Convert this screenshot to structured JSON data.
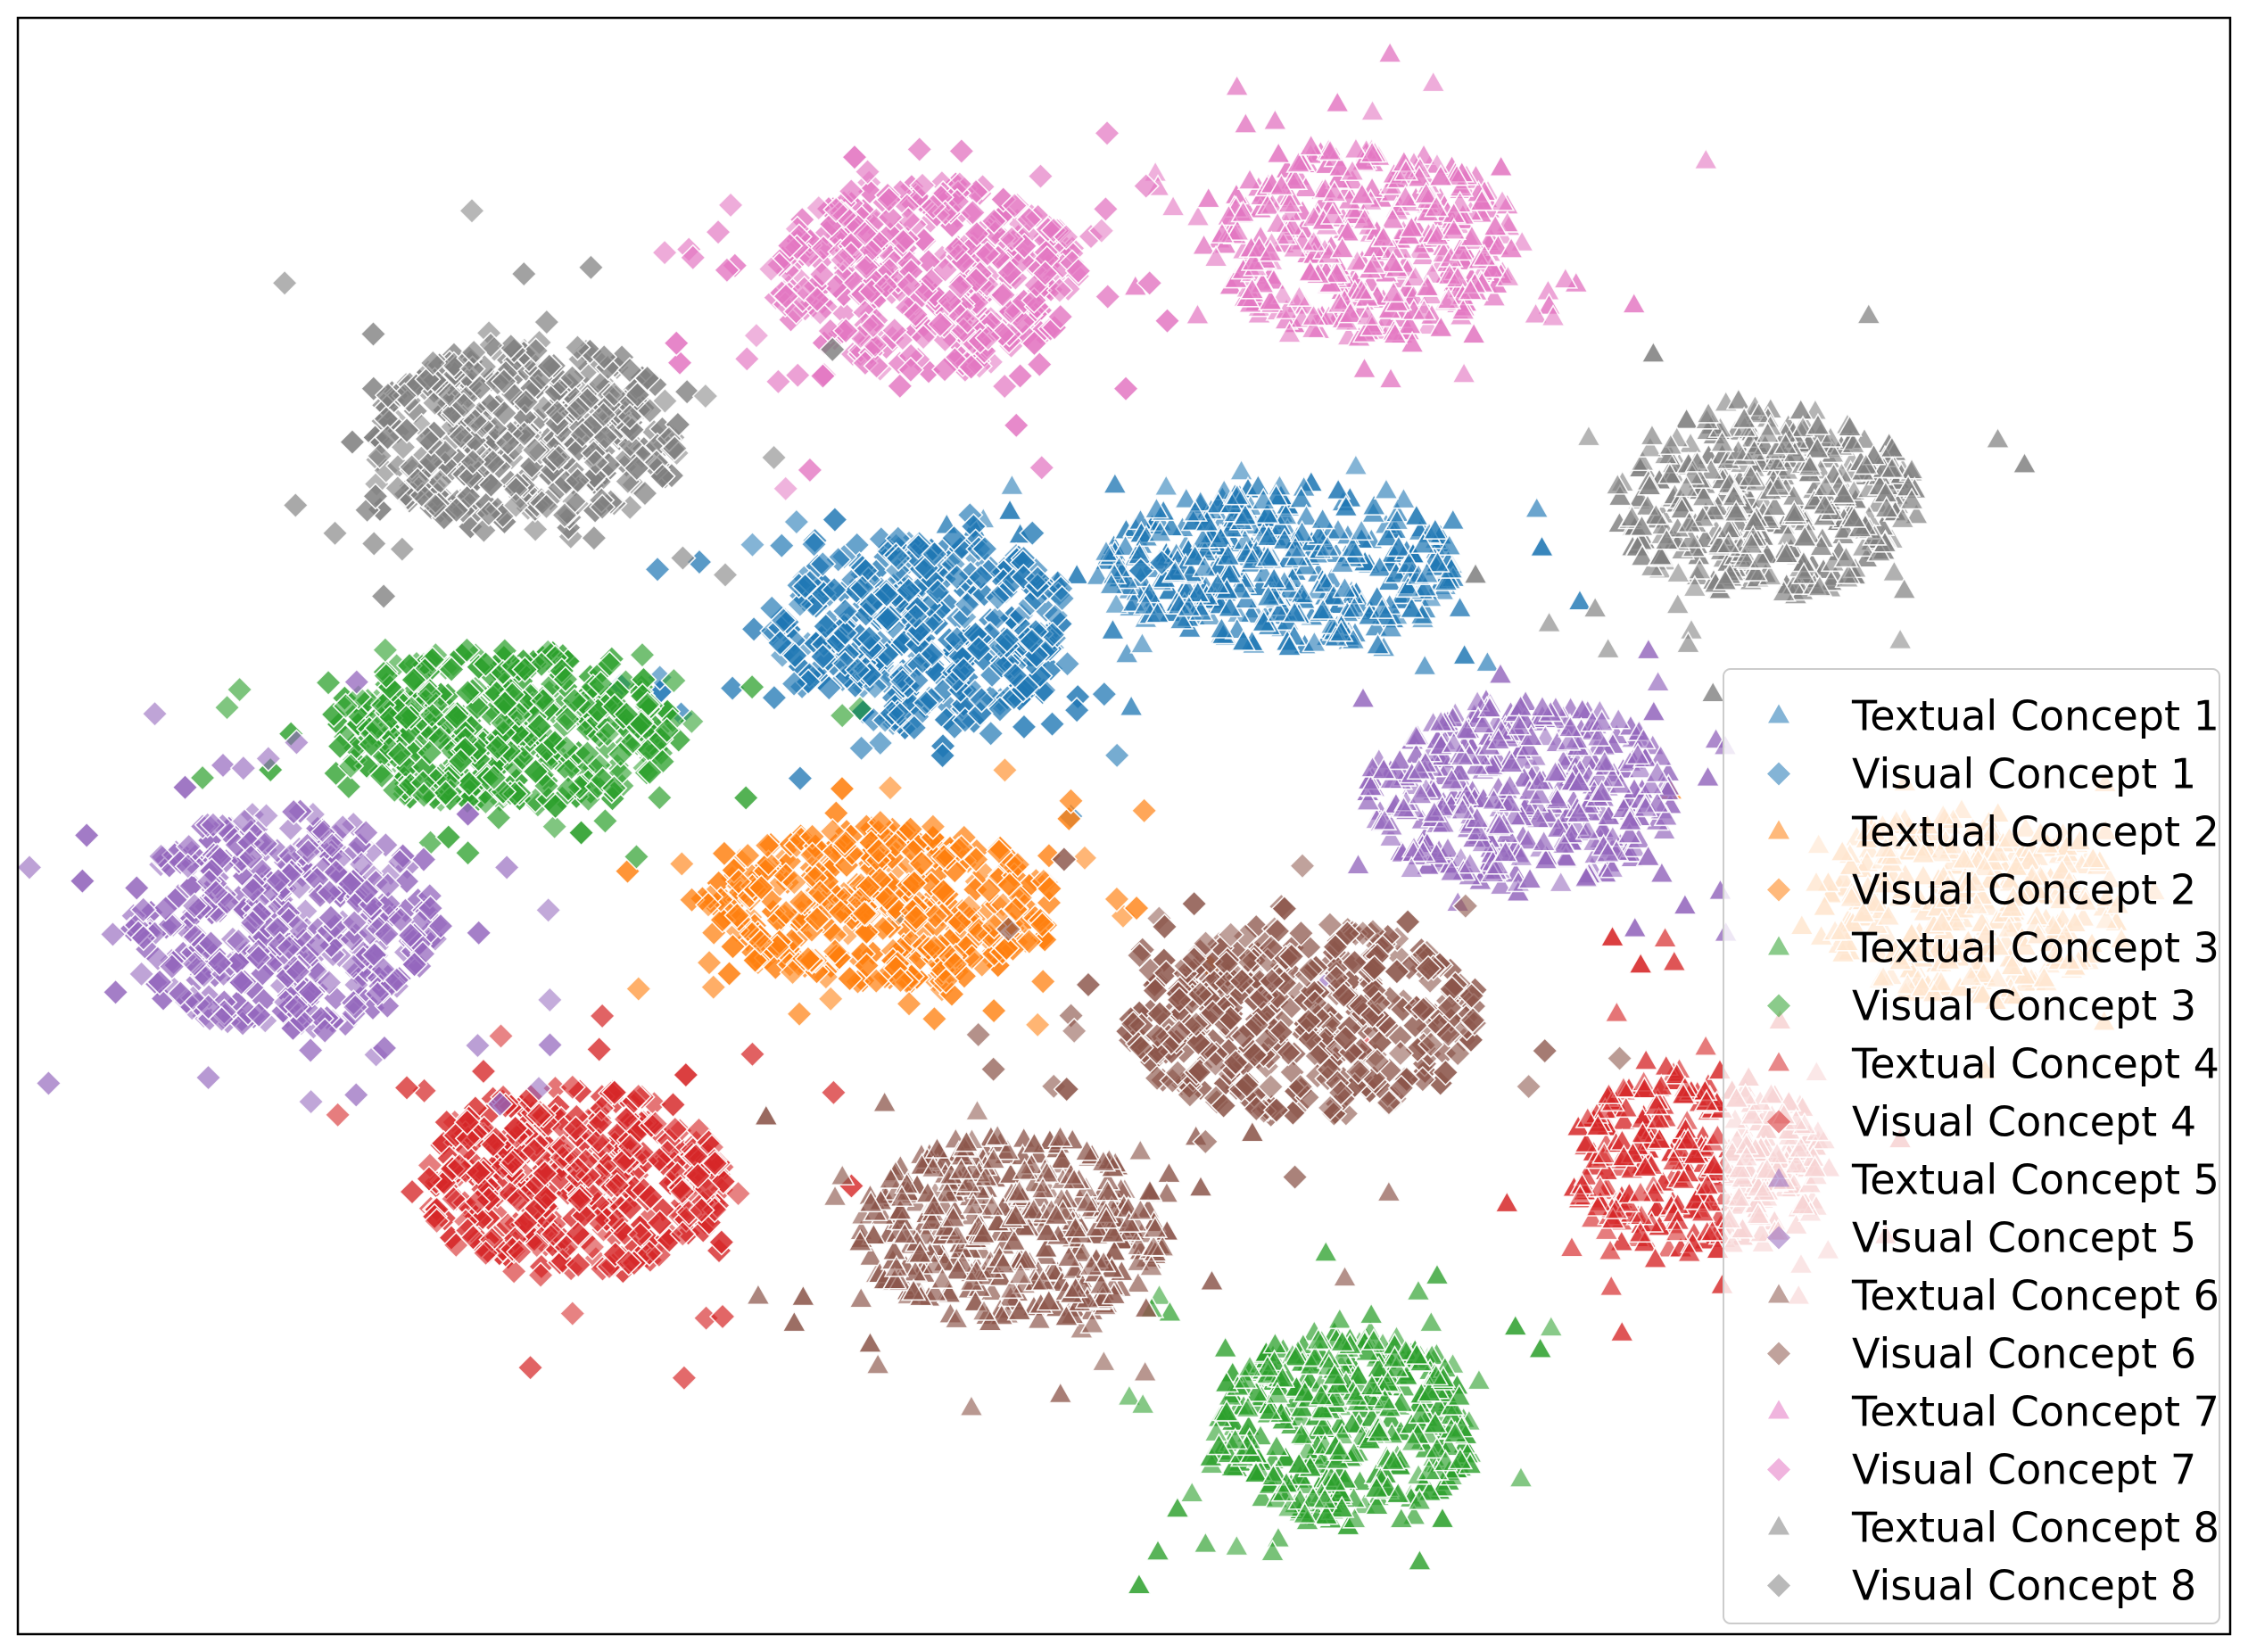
{
  "chart_data": {
    "type": "scatter",
    "title": "",
    "xlabel": "",
    "ylabel": "",
    "axes_ticks": false,
    "grid": false,
    "legend_placement": "lower-right",
    "marker_shapes": {
      "textual": "triangle",
      "visual": "diamond"
    },
    "series": [
      {
        "name": "Textual Concept 1",
        "concept": 1,
        "kind": "textual",
        "color": "#1f77b4",
        "cluster": {
          "center": [
            57,
            34
          ],
          "spread": [
            8,
            5
          ],
          "count": 420
        }
      },
      {
        "name": "Visual Concept 1",
        "concept": 1,
        "kind": "visual",
        "color": "#1f77b4",
        "cluster": {
          "center": [
            41,
            38
          ],
          "spread": [
            7,
            6
          ],
          "count": 420
        }
      },
      {
        "name": "Textual Concept 2",
        "concept": 2,
        "kind": "textual",
        "color": "#ff7f0e",
        "cluster": {
          "center": [
            88,
            55
          ],
          "spread": [
            7,
            6
          ],
          "count": 330
        }
      },
      {
        "name": "Visual Concept 2",
        "concept": 2,
        "kind": "visual",
        "color": "#ff7f0e",
        "cluster": {
          "center": [
            39,
            55
          ],
          "spread": [
            8,
            5
          ],
          "count": 420
        }
      },
      {
        "name": "Textual Concept 3",
        "concept": 3,
        "kind": "textual",
        "color": "#2ca02c",
        "cluster": {
          "center": [
            60,
            87
          ],
          "spread": [
            6,
            6
          ],
          "count": 420
        }
      },
      {
        "name": "Visual Concept 3",
        "concept": 3,
        "kind": "visual",
        "color": "#2ca02c",
        "cluster": {
          "center": [
            22,
            44
          ],
          "spread": [
            8,
            5
          ],
          "count": 420
        }
      },
      {
        "name": "Textual Concept 4",
        "concept": 4,
        "kind": "textual",
        "color": "#d62728",
        "cluster": {
          "center": [
            76,
            71
          ],
          "spread": [
            6,
            6
          ],
          "count": 340
        }
      },
      {
        "name": "Visual Concept 4",
        "concept": 4,
        "kind": "visual",
        "color": "#d62728",
        "cluster": {
          "center": [
            25,
            72
          ],
          "spread": [
            7,
            6
          ],
          "count": 420
        }
      },
      {
        "name": "Textual Concept 5",
        "concept": 5,
        "kind": "textual",
        "color": "#9467bd",
        "cluster": {
          "center": [
            68,
            48
          ],
          "spread": [
            7,
            6
          ],
          "count": 420
        }
      },
      {
        "name": "Visual Concept 5",
        "concept": 5,
        "kind": "visual",
        "color": "#9467bd",
        "cluster": {
          "center": [
            12,
            56
          ],
          "spread": [
            7,
            7
          ],
          "count": 420
        }
      },
      {
        "name": "Textual Concept 6",
        "concept": 6,
        "kind": "textual",
        "color": "#8c564b",
        "cluster": {
          "center": [
            45,
            75
          ],
          "spread": [
            7,
            6
          ],
          "count": 420
        }
      },
      {
        "name": "Visual Concept 6",
        "concept": 6,
        "kind": "visual",
        "color": "#8c564b",
        "cluster": {
          "center": [
            58,
            62
          ],
          "spread": [
            8,
            6
          ],
          "count": 420
        }
      },
      {
        "name": "Textual Concept 7",
        "concept": 7,
        "kind": "textual",
        "color": "#e377c2",
        "cluster": {
          "center": [
            61,
            14
          ],
          "spread": [
            7,
            6
          ],
          "count": 420
        }
      },
      {
        "name": "Visual Concept 7",
        "concept": 7,
        "kind": "visual",
        "color": "#e377c2",
        "cluster": {
          "center": [
            41,
            16
          ],
          "spread": [
            7,
            6
          ],
          "count": 420
        }
      },
      {
        "name": "Textual Concept 8",
        "concept": 8,
        "kind": "textual",
        "color": "#7f7f7f",
        "cluster": {
          "center": [
            79,
            30
          ],
          "spread": [
            7,
            6
          ],
          "count": 420
        }
      },
      {
        "name": "Visual Concept 8",
        "concept": 8,
        "kind": "visual",
        "color": "#7f7f7f",
        "cluster": {
          "center": [
            23,
            26
          ],
          "spread": [
            7,
            6
          ],
          "count": 420
        }
      }
    ]
  }
}
